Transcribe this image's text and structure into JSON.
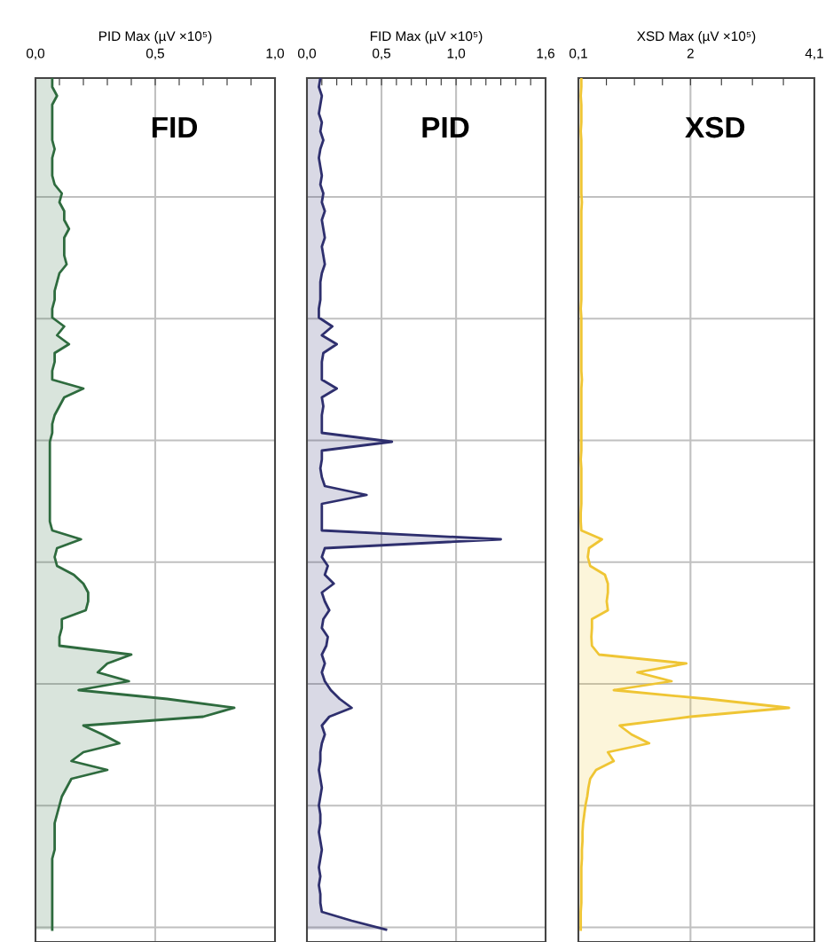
{
  "chart_data": [
    {
      "type": "area",
      "orientation": "horizontal",
      "xlabel": "PID Max (µV ×10⁵)",
      "annotations": [
        "FID"
      ],
      "grid": true,
      "tick_labels": "x",
      "xlim": [
        0,
        1.0
      ],
      "xticks": [
        {
          "value": 0,
          "label": "0,0"
        },
        {
          "value": 0.1,
          "label": null
        },
        {
          "value": 0.2,
          "label": null
        },
        {
          "value": 0.3,
          "label": null
        },
        {
          "value": 0.4,
          "label": null
        },
        {
          "value": 0.5,
          "label": "0,5"
        },
        {
          "value": 0.6,
          "label": null
        },
        {
          "value": 0.7,
          "label": null
        },
        {
          "value": 0.8,
          "label": null
        },
        {
          "value": 0.9,
          "label": null
        },
        {
          "value": 1.0,
          "label": "1,0"
        }
      ],
      "categories": [
        null,
        null,
        null,
        null,
        null,
        null,
        null,
        null,
        null,
        null,
        null,
        null,
        null,
        null,
        null,
        null,
        null,
        null,
        null,
        null,
        null,
        null,
        null,
        null,
        null,
        null,
        null,
        null,
        null,
        null,
        null,
        null,
        null,
        null,
        null,
        null,
        null,
        null,
        null,
        null,
        null,
        null,
        null,
        null,
        null,
        null,
        null,
        null,
        null,
        null,
        null,
        null,
        null,
        null,
        null,
        null,
        null,
        null,
        null,
        null,
        null,
        null,
        null,
        null,
        null,
        null,
        null,
        null,
        null,
        null,
        null,
        null,
        null,
        null,
        null,
        null,
        null,
        null,
        null,
        null,
        null,
        null,
        null,
        null,
        null,
        null,
        null,
        null,
        null,
        null,
        null,
        null,
        null,
        null,
        null,
        null,
        null
      ],
      "series": [
        {
          "color": "#2e6b3e",
          "values": [
            0.07,
            0.07,
            0.09,
            0.07,
            0.07,
            0.07,
            0.07,
            0.07,
            0.08,
            0.07,
            0.07,
            0.07,
            0.08,
            0.11,
            0.1,
            0.12,
            0.12,
            0.14,
            0.12,
            0.12,
            0.12,
            0.13,
            0.1,
            0.09,
            0.08,
            0.08,
            0.07,
            0.07,
            0.12,
            0.09,
            0.14,
            0.08,
            0.08,
            0.07,
            0.07,
            0.2,
            0.12,
            0.1,
            0.08,
            0.07,
            0.07,
            0.06,
            0.06,
            0.06,
            0.06,
            0.06,
            0.06,
            0.06,
            0.06,
            0.06,
            0.06,
            0.07,
            0.19,
            0.09,
            0.08,
            0.09,
            0.16,
            0.2,
            0.22,
            0.22,
            0.21,
            0.11,
            0.11,
            0.1,
            0.1,
            0.4,
            0.3,
            0.26,
            0.39,
            0.18,
            0.55,
            0.83,
            0.7,
            0.2,
            0.28,
            0.35,
            0.2,
            0.15,
            0.3,
            0.15,
            0.13,
            0.11,
            0.1,
            0.09,
            0.08,
            0.08,
            0.08,
            0.08,
            0.07,
            0.07,
            0.07,
            0.07,
            0.07,
            0.07,
            0.07,
            0.07,
            0.07
          ]
        }
      ]
    },
    {
      "type": "area",
      "orientation": "horizontal",
      "xlabel": "FID Max (µV ×10⁵)",
      "annotations": [
        "PID"
      ],
      "grid": true,
      "tick_labels": "x",
      "xlim": [
        0,
        1.6
      ],
      "xticks": [
        {
          "value": 0,
          "label": "0,0"
        },
        {
          "value": 0.1,
          "label": null
        },
        {
          "value": 0.2,
          "label": null
        },
        {
          "value": 0.3,
          "label": null
        },
        {
          "value": 0.4,
          "label": null
        },
        {
          "value": 0.5,
          "label": "0,5"
        },
        {
          "value": 0.6,
          "label": null
        },
        {
          "value": 0.7,
          "label": null
        },
        {
          "value": 0.8,
          "label": null
        },
        {
          "value": 0.9,
          "label": null
        },
        {
          "value": 1.0,
          "label": "1,0"
        },
        {
          "value": 1.1,
          "label": null
        },
        {
          "value": 1.2,
          "label": null
        },
        {
          "value": 1.3,
          "label": null
        },
        {
          "value": 1.4,
          "label": null
        },
        {
          "value": 1.5,
          "label": null
        },
        {
          "value": 1.6,
          "label": "1,6"
        }
      ],
      "categories": [
        null,
        null,
        null,
        null,
        null,
        null,
        null,
        null,
        null,
        null,
        null,
        null,
        null,
        null,
        null,
        null,
        null,
        null,
        null,
        null,
        null,
        null,
        null,
        null,
        null,
        null,
        null,
        null,
        null,
        null,
        null,
        null,
        null,
        null,
        null,
        null,
        null,
        null,
        null,
        null,
        null,
        null,
        null,
        null,
        null,
        null,
        null,
        null,
        null,
        null,
        null,
        null,
        null,
        null,
        null,
        null,
        null,
        null,
        null,
        null,
        null,
        null,
        null,
        null,
        null,
        null,
        null,
        null,
        null,
        null,
        null,
        null,
        null,
        null,
        null,
        null,
        null,
        null,
        null,
        null,
        null,
        null,
        null,
        null,
        null,
        null,
        null,
        null,
        null,
        null,
        null,
        null,
        null,
        null,
        null,
        null,
        null
      ],
      "series": [
        {
          "color": "#2e2f6e",
          "values": [
            0.09,
            0.08,
            0.1,
            0.09,
            0.08,
            0.1,
            0.09,
            0.11,
            0.09,
            0.08,
            0.09,
            0.1,
            0.09,
            0.11,
            0.1,
            0.12,
            0.1,
            0.11,
            0.12,
            0.1,
            0.11,
            0.12,
            0.1,
            0.09,
            0.09,
            0.09,
            0.08,
            0.08,
            0.17,
            0.1,
            0.2,
            0.11,
            0.1,
            0.1,
            0.1,
            0.2,
            0.1,
            0.11,
            0.1,
            0.1,
            0.1,
            0.57,
            0.1,
            0.1,
            0.09,
            0.1,
            0.12,
            0.4,
            0.1,
            0.1,
            0.1,
            0.1,
            1.3,
            0.12,
            0.1,
            0.14,
            0.12,
            0.18,
            0.1,
            0.12,
            0.15,
            0.11,
            0.1,
            0.14,
            0.13,
            0.1,
            0.12,
            0.1,
            0.12,
            0.16,
            0.22,
            0.3,
            0.15,
            0.1,
            0.12,
            0.1,
            0.09,
            0.09,
            0.08,
            0.09,
            0.1,
            0.09,
            0.08,
            0.09,
            0.09,
            0.08,
            0.09,
            0.1,
            0.09,
            0.08,
            0.09,
            0.08,
            0.09,
            0.09,
            0.1,
            0.3,
            0.53
          ]
        }
      ]
    },
    {
      "type": "area",
      "orientation": "horizontal",
      "xlabel": "XSD Max (µV ×10⁵)",
      "annotations": [
        "XSD"
      ],
      "grid": true,
      "tick_labels": "x",
      "xlim": [
        0.1,
        4.1
      ],
      "xticks": [
        {
          "value": 0.1,
          "label": "0,1"
        },
        {
          "value": 0.575,
          "label": null
        },
        {
          "value": 1.05,
          "label": null
        },
        {
          "value": 1.525,
          "label": null
        },
        {
          "value": 2,
          "label": "2"
        },
        {
          "value": 2.525,
          "label": null
        },
        {
          "value": 3.05,
          "label": null
        },
        {
          "value": 3.575,
          "label": null
        },
        {
          "value": 4.1,
          "label": "4,1"
        }
      ],
      "categories": [
        null,
        null,
        null,
        null,
        null,
        null,
        null,
        null,
        null,
        null,
        null,
        null,
        null,
        null,
        null,
        null,
        null,
        null,
        null,
        null,
        null,
        null,
        null,
        null,
        null,
        null,
        null,
        null,
        null,
        null,
        null,
        null,
        null,
        null,
        null,
        null,
        null,
        null,
        null,
        null,
        null,
        null,
        null,
        null,
        null,
        null,
        null,
        null,
        null,
        null,
        null,
        null,
        null,
        null,
        null,
        null,
        null,
        null,
        null,
        null,
        null,
        null,
        null,
        null,
        null,
        null,
        null,
        null,
        null,
        null,
        null,
        null,
        null,
        null,
        null,
        null,
        null,
        null,
        null,
        null,
        null,
        null,
        null,
        null,
        null,
        null,
        null,
        null,
        null,
        null,
        null,
        null,
        null,
        null,
        null,
        null,
        null
      ],
      "series": [
        {
          "color": "#efc534",
          "values": [
            0.15,
            0.15,
            0.14,
            0.15,
            0.15,
            0.15,
            0.14,
            0.15,
            0.15,
            0.15,
            0.15,
            0.15,
            0.15,
            0.15,
            0.16,
            0.15,
            0.15,
            0.15,
            0.15,
            0.15,
            0.15,
            0.15,
            0.15,
            0.15,
            0.15,
            0.15,
            0.14,
            0.15,
            0.15,
            0.15,
            0.15,
            0.15,
            0.15,
            0.15,
            0.16,
            0.15,
            0.15,
            0.15,
            0.15,
            0.15,
            0.15,
            0.15,
            0.15,
            0.14,
            0.15,
            0.15,
            0.15,
            0.15,
            0.15,
            0.14,
            0.14,
            0.15,
            0.5,
            0.28,
            0.26,
            0.3,
            0.55,
            0.6,
            0.6,
            0.58,
            0.6,
            0.33,
            0.33,
            0.32,
            0.33,
            0.45,
            1.93,
            1.1,
            1.68,
            0.7,
            2.3,
            3.67,
            2.0,
            0.8,
            1.0,
            1.3,
            0.6,
            0.7,
            0.4,
            0.3,
            0.27,
            0.25,
            0.22,
            0.2,
            0.18,
            0.17,
            0.17,
            0.16,
            0.16,
            0.15,
            0.15,
            0.15,
            0.15,
            0.15,
            0.14,
            0.14,
            0.14
          ]
        }
      ]
    }
  ]
}
